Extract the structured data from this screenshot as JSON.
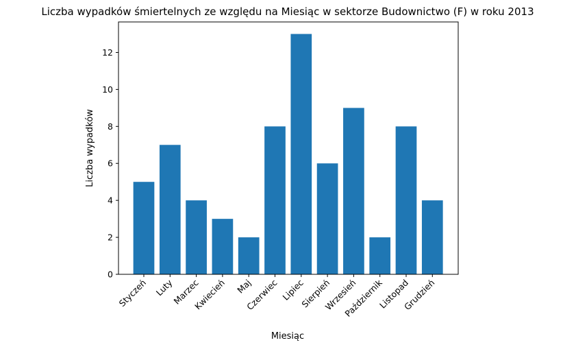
{
  "chart_data": {
    "type": "bar",
    "title": "Liczba wypadków śmiertelnych ze względu na Miesiąc w sektorze Budownictwo  (F)    w roku 2013",
    "xlabel": "Miesiąc",
    "ylabel": "Liczba wypadków",
    "categories": [
      "Styczeń",
      "Luty",
      "Marzec",
      "Kwiecień",
      "Maj",
      "Czerwiec",
      "Lipiec",
      "Sierpień",
      "Wrzesień",
      "Październik",
      "Listopad",
      "Grudzień"
    ],
    "values": [
      5,
      7,
      4,
      3,
      2,
      8,
      13,
      6,
      9,
      2,
      8,
      4
    ],
    "ylim": [
      0,
      13.65
    ],
    "yticks": [
      0,
      2,
      4,
      6,
      8,
      10,
      12
    ],
    "bar_color": "#1f77b4",
    "grid": false,
    "legend": "none"
  }
}
